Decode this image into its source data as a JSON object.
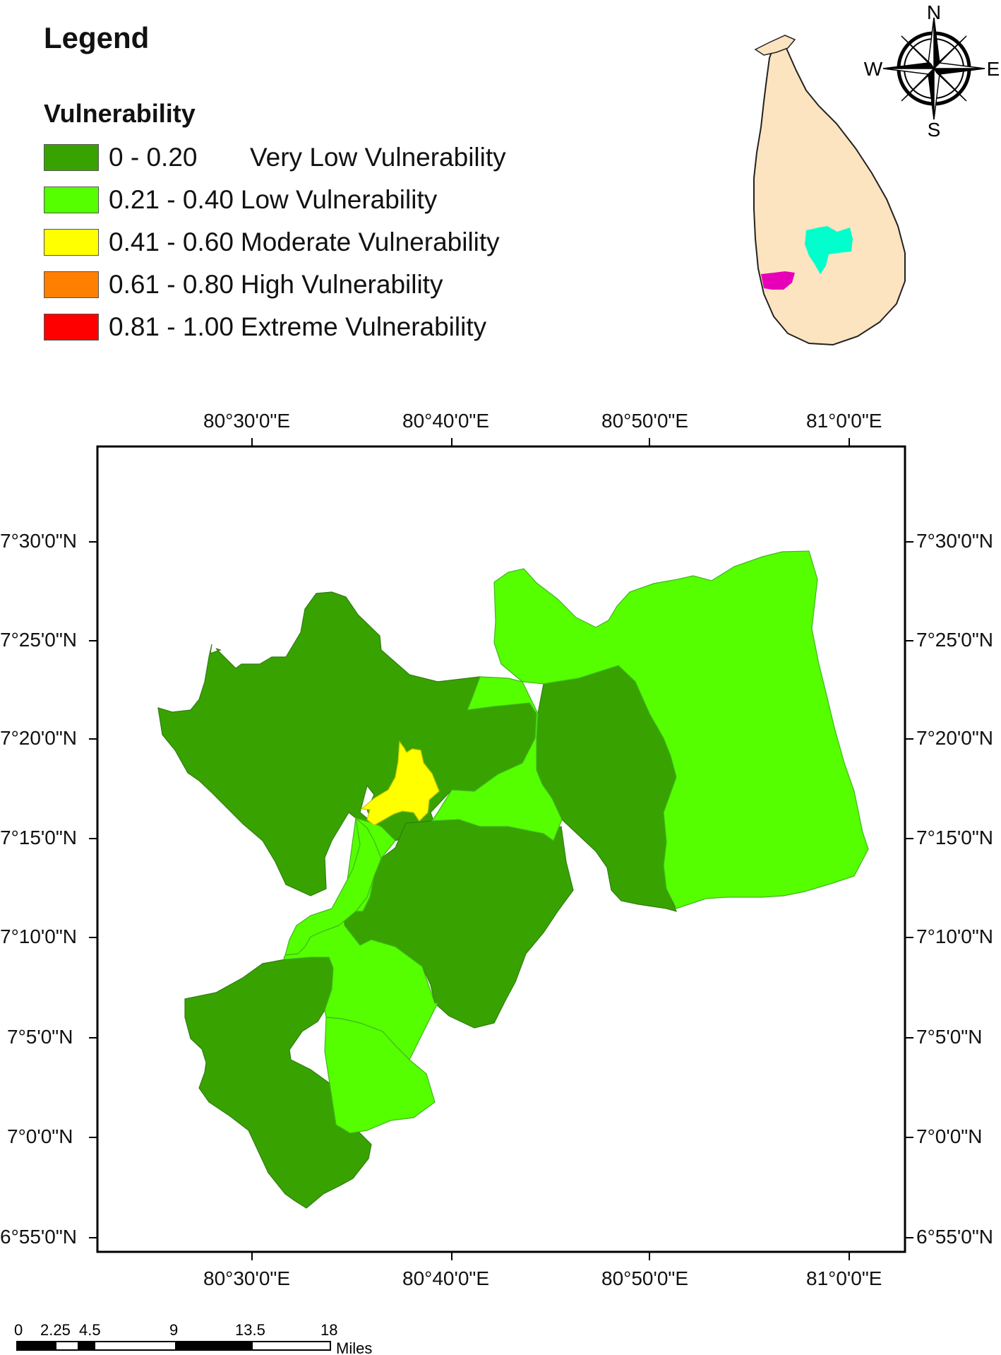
{
  "legend": {
    "title": "Legend",
    "subtitle": "Vulnerability",
    "items": [
      {
        "range": "0 - 0.20",
        "label": "Very Low Vulnerability",
        "color": "#38a300"
      },
      {
        "range": "0.21 - 0.40",
        "label": "Low Vulnerability",
        "color": "#55ff00"
      },
      {
        "range": "0.41 - 0.60",
        "label": "Moderate Vulnerability",
        "color": "#ffff00"
      },
      {
        "range": "0.61 - 0.80",
        "label": "High Vulnerability",
        "color": "#ff7f00"
      },
      {
        "range": "0.81 - 1.00",
        "label": "Extreme Vulnerability",
        "color": "#ff0000"
      }
    ]
  },
  "inset": {
    "island_color": "#fde4c0",
    "highlight_a_color": "#00ffcc",
    "highlight_b_color": "#e600b8"
  },
  "compass": {
    "n": "N",
    "s": "S",
    "e": "E",
    "w": "W"
  },
  "axes": {
    "top_labels": [
      "80°30'0\"E",
      "80°40'0\"E",
      "80°50'0\"E",
      "81°0'0\"E"
    ],
    "bottom_labels": [
      "80°30'0\"E",
      "80°40'0\"E",
      "80°50'0\"E",
      "81°0'0\"E"
    ],
    "left_labels": [
      "7°30'0\"N",
      "7°25'0\"N",
      "7°20'0\"N",
      "7°15'0\"N",
      "7°10'0\"N",
      "7°5'0\"N",
      "7°0'0\"N",
      "6°55'0\"N"
    ],
    "right_labels": [
      "7°30'0\"N",
      "7°25'0\"N",
      "7°20'0\"N",
      "7°15'0\"N",
      "7°10'0\"N",
      "7°5'0\"N",
      "7°0'0\"N",
      "6°55'0\"N"
    ]
  },
  "scale_bar": {
    "ticks": [
      "0",
      "2.25",
      "4.5",
      "9",
      "13.5",
      "18"
    ],
    "unit": "Miles"
  }
}
